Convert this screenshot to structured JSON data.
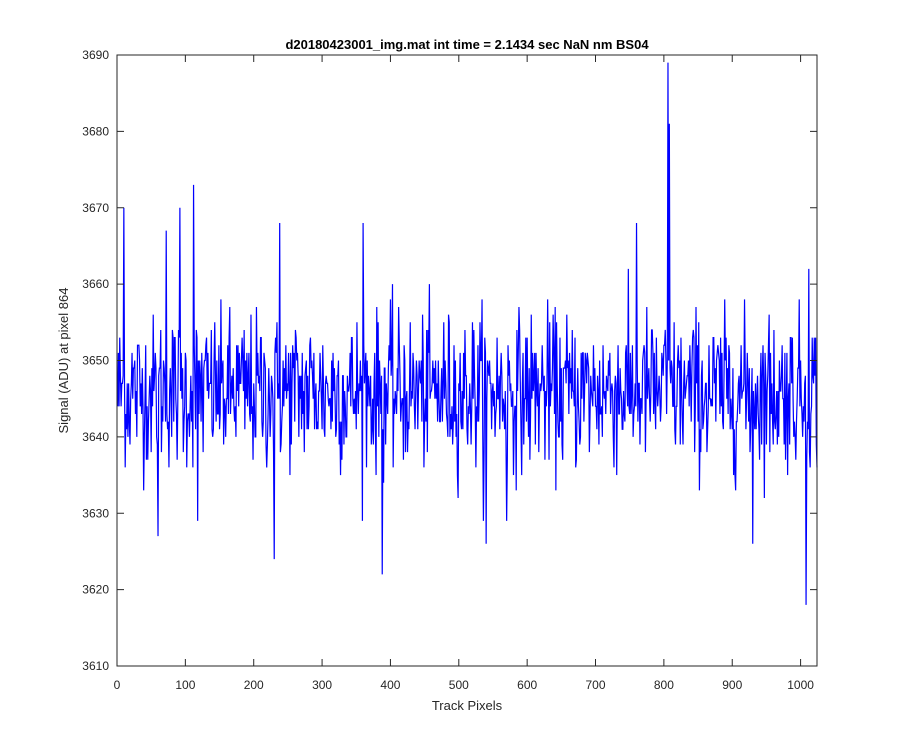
{
  "chart_data": {
    "type": "line",
    "title": "d20180423001_img.mat int time = 2.1434 sec  NaN nm BS04",
    "xlabel": "Track Pixels",
    "ylabel": "Signal (ADU) at pixel 864",
    "xlim": [
      0,
      1024
    ],
    "ylim": [
      3610,
      3690
    ],
    "xticks": [
      0,
      100,
      200,
      300,
      400,
      500,
      600,
      700,
      800,
      900,
      1000
    ],
    "yticks": [
      3610,
      3620,
      3630,
      3640,
      3650,
      3660,
      3670,
      3680,
      3690
    ],
    "grid": false,
    "box": true,
    "series": [
      {
        "color": "#0000ff",
        "x_start": 1,
        "x_step": 1,
        "mean": 3646,
        "spread": 5,
        "count": 1024,
        "notable_points": [
          {
            "x": 10,
            "y": 3670
          },
          {
            "x": 60,
            "y": 3627
          },
          {
            "x": 72,
            "y": 3667
          },
          {
            "x": 92,
            "y": 3670
          },
          {
            "x": 112,
            "y": 3673
          },
          {
            "x": 118,
            "y": 3629
          },
          {
            "x": 238,
            "y": 3668
          },
          {
            "x": 230,
            "y": 3624
          },
          {
            "x": 360,
            "y": 3668
          },
          {
            "x": 388,
            "y": 3622
          },
          {
            "x": 540,
            "y": 3626
          },
          {
            "x": 570,
            "y": 3629
          },
          {
            "x": 760,
            "y": 3668
          },
          {
            "x": 806,
            "y": 3689
          },
          {
            "x": 808,
            "y": 3681
          },
          {
            "x": 930,
            "y": 3626
          },
          {
            "x": 1008,
            "y": 3618
          },
          {
            "x": 1012,
            "y": 3662
          }
        ]
      }
    ]
  },
  "colors": {
    "line": "#0000ff",
    "axes": "#262626",
    "background": "#ffffff"
  }
}
